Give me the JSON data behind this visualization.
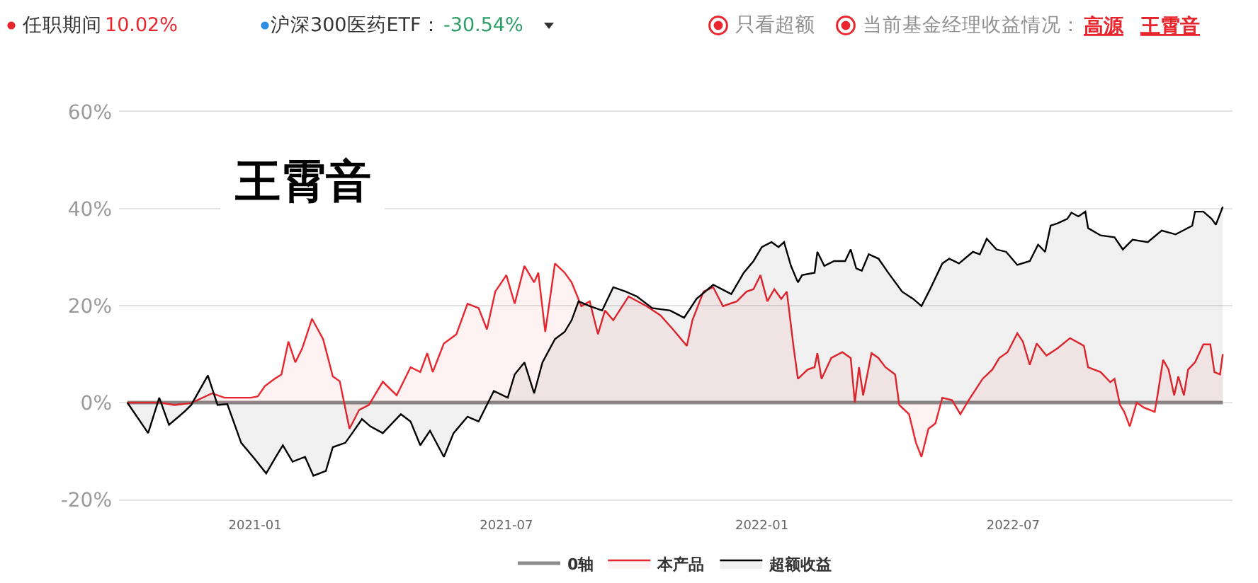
{
  "chart_data": {
    "type": "area",
    "annotations": [
      "任职期间",
      "10.02%",
      "沪深300医药ETF：",
      "-30.54%",
      "只看超额",
      "当前基金经理收益情况：",
      "高源",
      "王霄音",
      "王霄音"
    ],
    "series": [
      {
        "name": "0轴",
        "type": "line",
        "color": "#8c8c8c",
        "x": [
          "2020-10-01",
          "2022-11-29"
        ],
        "values": [
          0,
          0
        ]
      },
      {
        "name": "本产品",
        "color": "#e8262d",
        "x": [
          "2020-10-01",
          "2020-10-25",
          "2020-11-04",
          "2020-11-16",
          "2020-12-01",
          "2020-12-10",
          "2020-12-29",
          "2021-01-03",
          "2021-01-08",
          "2021-01-15",
          "2021-01-20",
          "2021-01-25",
          "2021-01-30",
          "2021-02-04",
          "2021-02-11",
          "2021-02-19",
          "2021-02-26",
          "2021-03-03",
          "2021-03-10",
          "2021-03-17",
          "2021-03-24",
          "2021-04-03",
          "2021-04-13",
          "2021-04-23",
          "2021-04-30",
          "2021-05-05",
          "2021-05-09",
          "2021-05-17",
          "2021-05-26",
          "2021-06-03",
          "2021-06-11",
          "2021-06-17",
          "2021-06-23",
          "2021-07-01",
          "2021-07-07",
          "2021-07-14",
          "2021-07-21",
          "2021-07-24",
          "2021-07-29",
          "2021-08-05",
          "2021-08-12",
          "2021-08-17",
          "2021-08-24",
          "2021-08-30",
          "2021-09-05",
          "2021-09-10",
          "2021-09-16",
          "2021-09-27",
          "2021-10-10",
          "2021-10-20",
          "2021-10-29",
          "2021-11-08",
          "2021-11-12",
          "2021-11-20",
          "2021-11-27",
          "2021-12-04",
          "2021-12-14",
          "2021-12-21",
          "2021-12-26",
          "2021-12-31",
          "2022-01-05",
          "2022-01-10",
          "2022-01-15",
          "2022-01-19",
          "2022-01-24",
          "2022-01-27",
          "2022-02-03",
          "2022-02-08",
          "2022-02-10",
          "2022-02-13",
          "2022-02-20",
          "2022-02-28",
          "2022-03-06",
          "2022-03-09",
          "2022-03-12",
          "2022-03-15",
          "2022-03-21",
          "2022-03-26",
          "2022-03-31",
          "2022-04-07",
          "2022-04-10",
          "2022-04-17",
          "2022-04-22",
          "2022-04-26",
          "2022-05-01",
          "2022-05-06",
          "2022-05-11",
          "2022-05-18",
          "2022-05-24",
          "2022-05-30",
          "2022-06-09",
          "2022-06-16",
          "2022-06-21",
          "2022-06-27",
          "2022-07-04",
          "2022-07-08",
          "2022-07-13",
          "2022-07-18",
          "2022-07-25",
          "2022-08-02",
          "2022-08-11",
          "2022-08-21",
          "2022-08-24",
          "2022-09-02",
          "2022-09-09",
          "2022-09-12",
          "2022-09-16",
          "2022-09-19",
          "2022-09-23",
          "2022-09-28",
          "2022-10-03",
          "2022-10-11",
          "2022-10-13",
          "2022-10-17",
          "2022-10-21",
          "2022-10-25",
          "2022-10-28",
          "2022-11-01",
          "2022-11-04",
          "2022-11-09",
          "2022-11-15",
          "2022-11-20",
          "2022-11-23",
          "2022-11-27",
          "2022-11-29"
        ],
        "values": [
          0,
          0,
          -0.5,
          -0.1,
          1.9,
          1.0,
          1.0,
          1.3,
          3.4,
          4.9,
          5.8,
          12.6,
          8.3,
          11.2,
          17.3,
          13.1,
          5.4,
          4.4,
          -5.4,
          -1.5,
          -0.5,
          4.3,
          1.5,
          7.3,
          6.3,
          10.2,
          6.3,
          12.2,
          14.1,
          20.4,
          19.5,
          15.1,
          22.9,
          26.3,
          20.4,
          28.2,
          24.8,
          26.8,
          14.6,
          28.7,
          26.8,
          24.8,
          19.9,
          20.9,
          14.1,
          19.0,
          17.0,
          21.9,
          19.9,
          18.0,
          15.1,
          11.7,
          17.0,
          22.9,
          23.8,
          19.9,
          20.9,
          22.9,
          23.4,
          26.3,
          20.9,
          23.4,
          21.4,
          22.9,
          11.2,
          4.9,
          6.8,
          7.3,
          10.2,
          4.9,
          9.2,
          10.4,
          9.2,
          0,
          7.3,
          1.5,
          10.2,
          9.2,
          7.3,
          5.8,
          -0.5,
          -2.4,
          -8.3,
          -11.2,
          -5.4,
          -4.3,
          1.0,
          0.5,
          -2.4,
          0.5,
          4.9,
          6.8,
          9.2,
          10.4,
          14.3,
          12.6,
          7.8,
          12.2,
          9.7,
          11.2,
          13.3,
          11.7,
          7.3,
          6.3,
          4.2,
          4.9,
          -0.5,
          -1.9,
          -4.9,
          0,
          -1.0,
          -1.9,
          1.5,
          8.8,
          6.8,
          1.5,
          5.4,
          1.5,
          6.8,
          8.3,
          12.0,
          12.0,
          6.3,
          5.8,
          10.0
        ]
      },
      {
        "name": "超额收益",
        "color": "#000000",
        "x": [
          "2020-10-01",
          "2020-10-16",
          "2020-10-24",
          "2020-10-31",
          "2020-11-11",
          "2020-11-16",
          "2020-11-28",
          "2020-12-05",
          "2020-12-12",
          "2020-12-22",
          "2021-01-01",
          "2021-01-09",
          "2021-01-16",
          "2021-01-21",
          "2021-01-28",
          "2021-02-06",
          "2021-02-12",
          "2021-02-21",
          "2021-02-26",
          "2021-03-07",
          "2021-03-12",
          "2021-03-19",
          "2021-03-25",
          "2021-04-03",
          "2021-04-16",
          "2021-04-23",
          "2021-04-30",
          "2021-05-07",
          "2021-05-17",
          "2021-05-24",
          "2021-06-03",
          "2021-06-11",
          "2021-06-22",
          "2021-07-02",
          "2021-07-07",
          "2021-07-14",
          "2021-07-21",
          "2021-07-27",
          "2021-08-05",
          "2021-08-12",
          "2021-08-17",
          "2021-08-22",
          "2021-08-30",
          "2021-09-08",
          "2021-09-16",
          "2021-09-25",
          "2021-10-03",
          "2021-10-14",
          "2021-10-27",
          "2021-11-06",
          "2021-11-15",
          "2021-11-27",
          "2021-12-10",
          "2021-12-19",
          "2021-12-26",
          "2022-01-01",
          "2022-01-08",
          "2022-01-13",
          "2022-01-17",
          "2022-01-22",
          "2022-01-27",
          "2022-01-30",
          "2022-02-08",
          "2022-02-10",
          "2022-02-15",
          "2022-02-22",
          "2022-03-02",
          "2022-03-06",
          "2022-03-10",
          "2022-03-14",
          "2022-03-19",
          "2022-03-26",
          "2022-04-02",
          "2022-04-12",
          "2022-04-20",
          "2022-04-26",
          "2022-05-02",
          "2022-05-11",
          "2022-05-16",
          "2022-05-23",
          "2022-06-02",
          "2022-06-07",
          "2022-06-12",
          "2022-06-19",
          "2022-06-26",
          "2022-07-04",
          "2022-07-13",
          "2022-07-19",
          "2022-07-24",
          "2022-07-28",
          "2022-08-02",
          "2022-08-09",
          "2022-08-12",
          "2022-08-17",
          "2022-08-22",
          "2022-08-24",
          "2022-09-02",
          "2022-09-12",
          "2022-09-18",
          "2022-09-25",
          "2022-10-06",
          "2022-10-16",
          "2022-10-26",
          "2022-11-07",
          "2022-11-09",
          "2022-11-15",
          "2022-11-21",
          "2022-11-24",
          "2022-11-29"
        ],
        "values": [
          0,
          -6.3,
          1.0,
          -4.6,
          -1.9,
          -0.5,
          5.6,
          -0.5,
          -0.3,
          -8.3,
          -11.7,
          -14.6,
          -11.2,
          -8.8,
          -12.2,
          -11.2,
          -15.1,
          -14.1,
          -9.2,
          -8.3,
          -6.3,
          -3.4,
          -4.9,
          -6.3,
          -2.4,
          -3.9,
          -8.8,
          -5.8,
          -11.2,
          -6.3,
          -2.9,
          -3.9,
          2.4,
          1.0,
          5.8,
          8.3,
          1.9,
          8.3,
          13.1,
          14.6,
          17.0,
          20.9,
          19.9,
          19.0,
          23.8,
          22.9,
          21.9,
          19.5,
          19.0,
          17.5,
          21.4,
          24.3,
          22.4,
          26.8,
          29.2,
          32.1,
          33.1,
          32.1,
          33.1,
          28.2,
          24.8,
          26.3,
          26.8,
          31.1,
          28.2,
          29.2,
          29.2,
          31.6,
          27.7,
          27.2,
          30.6,
          29.7,
          26.8,
          22.9,
          21.4,
          19.9,
          23.3,
          28.7,
          29.7,
          28.7,
          31.1,
          30.6,
          33.8,
          31.6,
          31.1,
          28.4,
          29.2,
          32.6,
          31.1,
          36.5,
          37.0,
          37.9,
          39.2,
          38.4,
          39.4,
          36.0,
          34.5,
          34.1,
          31.6,
          33.6,
          33.1,
          35.5,
          34.7,
          36.5,
          39.4,
          39.4,
          37.9,
          36.7,
          40.4
        ]
      }
    ],
    "xlim": [
      "2020-09-25",
      "2022-12-06"
    ],
    "xticks": [
      "2021-01",
      "2021-07",
      "2022-01",
      "2022-07"
    ],
    "ylim": [
      -20,
      60
    ],
    "yticks": [
      {
        "value": -20,
        "label": "-20%"
      },
      {
        "value": 0,
        "label": "0%"
      },
      {
        "value": 20,
        "label": "20%"
      },
      {
        "value": 40,
        "label": "40%"
      },
      {
        "value": 60,
        "label": "60%"
      }
    ],
    "grid": "y",
    "legend": "bottom"
  }
}
